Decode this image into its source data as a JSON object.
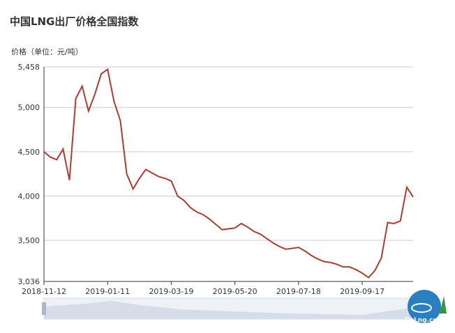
{
  "chart_data": {
    "type": "line",
    "title": "中国LNG出厂价格全国指数",
    "y_axis_label": "价格（单位：元/吨）",
    "categories": [
      "2018-11-12",
      null,
      null,
      null,
      null,
      null,
      null,
      null,
      null,
      null,
      "2019-01-11",
      null,
      null,
      null,
      null,
      null,
      null,
      null,
      null,
      null,
      "2019-03-19",
      null,
      null,
      null,
      null,
      null,
      null,
      null,
      null,
      null,
      "2019-05-20",
      null,
      null,
      null,
      null,
      null,
      null,
      null,
      null,
      null,
      "2019-07-18",
      null,
      null,
      null,
      null,
      null,
      null,
      null,
      null,
      null,
      "2019-09-17",
      null,
      null,
      null,
      null,
      null,
      null,
      null,
      null
    ],
    "series": [
      {
        "name": "价格",
        "color": "#b03a2e",
        "values": [
          4500,
          4440,
          4410,
          4530,
          4180,
          5100,
          5240,
          4960,
          5150,
          5380,
          5430,
          5070,
          4850,
          4250,
          4080,
          4200,
          4300,
          4260,
          4220,
          4200,
          4170,
          4000,
          3950,
          3870,
          3820,
          3790,
          3740,
          3680,
          3620,
          3630,
          3640,
          3690,
          3650,
          3600,
          3570,
          3520,
          3470,
          3430,
          3400,
          3410,
          3420,
          3380,
          3330,
          3290,
          3260,
          3250,
          3230,
          3200,
          3200,
          3170,
          3130,
          3080,
          3160,
          3300,
          3700,
          3690,
          3720,
          4100,
          3990
        ]
      }
    ],
    "ylim": [
      3036,
      5458
    ],
    "yticks": [
      {
        "value": 3036,
        "label": "3,036"
      },
      {
        "value": 3500,
        "label": "3,500"
      },
      {
        "value": 4000,
        "label": "4,000"
      },
      {
        "value": 4500,
        "label": "4,500"
      },
      {
        "value": 5000,
        "label": "5,000"
      },
      {
        "value": 5458,
        "label": "5,458"
      }
    ],
    "grid": true
  },
  "logo": {
    "text": "CnLng.com"
  }
}
